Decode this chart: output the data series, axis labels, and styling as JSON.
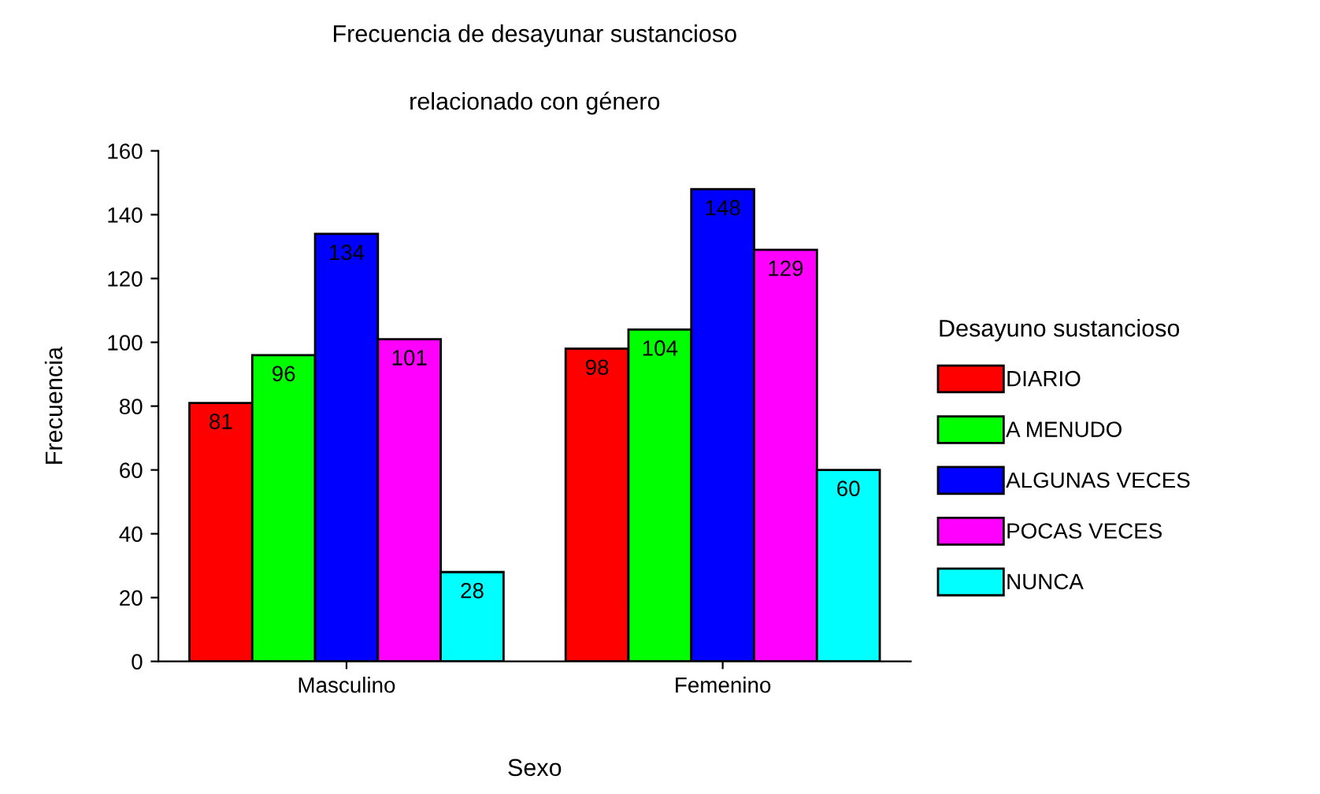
{
  "chart_data": {
    "type": "bar",
    "title": "Frecuencia de desayunar sustancioso",
    "subtitle": "relacionado con género",
    "xlabel": "Sexo",
    "ylabel": "Frecuencia",
    "legend_title": "Desayuno sustancioso",
    "categories": [
      "Masculino",
      "Femenino"
    ],
    "series": [
      {
        "name": "DIARIO",
        "color": "#ff0000",
        "values": [
          81,
          98
        ]
      },
      {
        "name": "A MENUDO",
        "color": "#00ff00",
        "values": [
          96,
          104
        ]
      },
      {
        "name": "ALGUNAS VECES",
        "color": "#0000ff",
        "values": [
          134,
          148
        ]
      },
      {
        "name": "POCAS VECES",
        "color": "#ff00ff",
        "values": [
          101,
          129
        ]
      },
      {
        "name": "NUNCA",
        "color": "#00ffff",
        "values": [
          28,
          60
        ]
      }
    ],
    "ylim": [
      0,
      160
    ],
    "yticks": [
      0,
      20,
      40,
      60,
      80,
      100,
      120,
      140,
      160
    ],
    "grid": false,
    "legend": "right",
    "data_labels": true
  }
}
